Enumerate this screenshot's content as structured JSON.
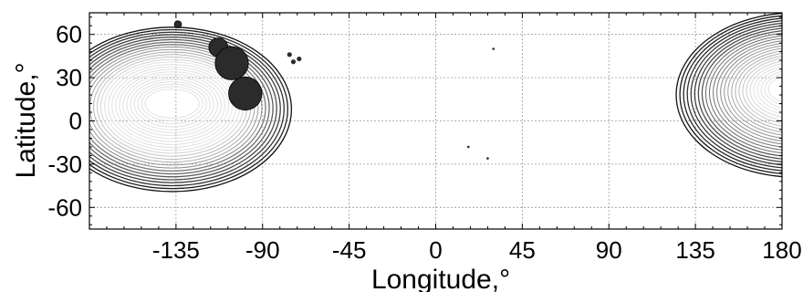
{
  "chart_data": {
    "type": "scatter",
    "title": "",
    "xlabel": "Longitude,°",
    "ylabel": "Latitude,°",
    "xlim": [
      -180,
      180
    ],
    "ylim": [
      -75,
      75
    ],
    "x_ticks": [
      -135,
      -90,
      -45,
      0,
      45,
      90,
      135,
      180
    ],
    "y_ticks": [
      60,
      30,
      0,
      -30,
      -60
    ],
    "x_tick_labels": [
      "-135",
      "-90",
      "-45",
      "0",
      "45",
      "90",
      "135",
      "180"
    ],
    "y_tick_labels": [
      "60",
      "30",
      "0",
      "-30",
      "-60"
    ],
    "grid": true,
    "colors": {
      "contour_dark": "#111111",
      "contour_light": "#dddddd",
      "marker": "#2b2b2b",
      "grid": "#999999"
    },
    "contour_centers": [
      {
        "lon": -137,
        "lat": 10
      },
      {
        "lon": 187,
        "lat": 20
      }
    ],
    "points": [
      {
        "lon": -134,
        "lat": 67,
        "size": 1.5
      },
      {
        "lon": -113,
        "lat": 51,
        "size": 4
      },
      {
        "lon": -106,
        "lat": 40,
        "size": 7
      },
      {
        "lon": -99,
        "lat": 19,
        "size": 7
      },
      {
        "lon": -76,
        "lat": 46,
        "size": 1
      },
      {
        "lon": -74,
        "lat": 41,
        "size": 1
      },
      {
        "lon": -71,
        "lat": 43,
        "size": 1
      },
      {
        "lon": 30,
        "lat": 50,
        "size": 0.5
      },
      {
        "lon": 17,
        "lat": -18,
        "size": 0.5
      },
      {
        "lon": 27,
        "lat": -26,
        "size": 0.5
      }
    ]
  }
}
